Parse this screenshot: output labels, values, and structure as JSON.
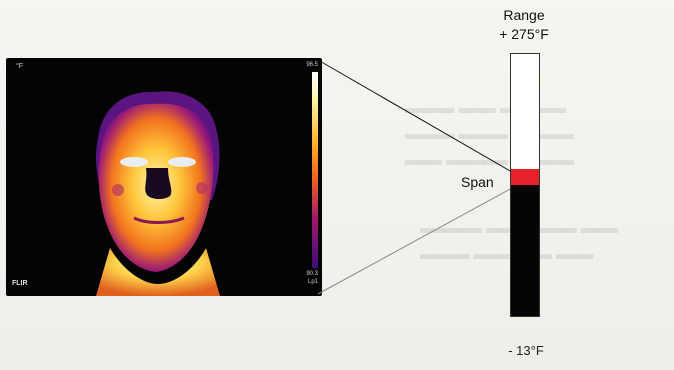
{
  "thermal_image": {
    "unit_label": "°F",
    "scale_top": "96.5",
    "scale_bottom_line1": "90.3",
    "scale_bottom_line2": "Lp1",
    "brand": "FLIR"
  },
  "range_bar": {
    "title": "Range",
    "high_label": "+ 275°F",
    "low_label": "- 13°F",
    "span_label": "Span",
    "range_max_f": 275,
    "range_min_f": -13,
    "span_fraction_from_bottom": [
      0.5,
      0.56
    ],
    "colors": {
      "span": "#e8222c",
      "below_span": "#050505",
      "above_span": "#ffffff"
    }
  }
}
